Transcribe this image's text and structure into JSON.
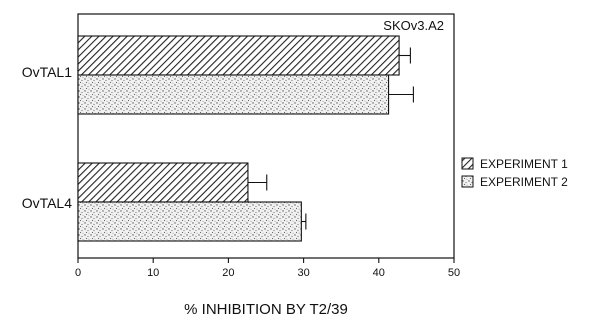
{
  "chart_data": {
    "type": "bar",
    "orientation": "horizontal",
    "annotation": "SKOv3.A2",
    "xlabel": "% INHIBITION BY T2/39",
    "ylabel": "",
    "xlim": [
      0,
      50
    ],
    "xticks": [
      "0",
      "10",
      "20",
      "30",
      "40",
      "50"
    ],
    "categories": [
      "OvTAL1",
      "OvTAL4"
    ],
    "series": [
      {
        "name": "EXPERIMENT 1",
        "values": [
          42.7,
          22.6
        ],
        "errors": [
          1.5,
          2.5
        ],
        "pattern": "diagonal-hatch"
      },
      {
        "name": "EXPERIMENT 2",
        "values": [
          41.3,
          29.7
        ],
        "errors": [
          3.3,
          0.6
        ],
        "pattern": "stipple"
      }
    ],
    "legend_position": "right",
    "grid": false
  }
}
